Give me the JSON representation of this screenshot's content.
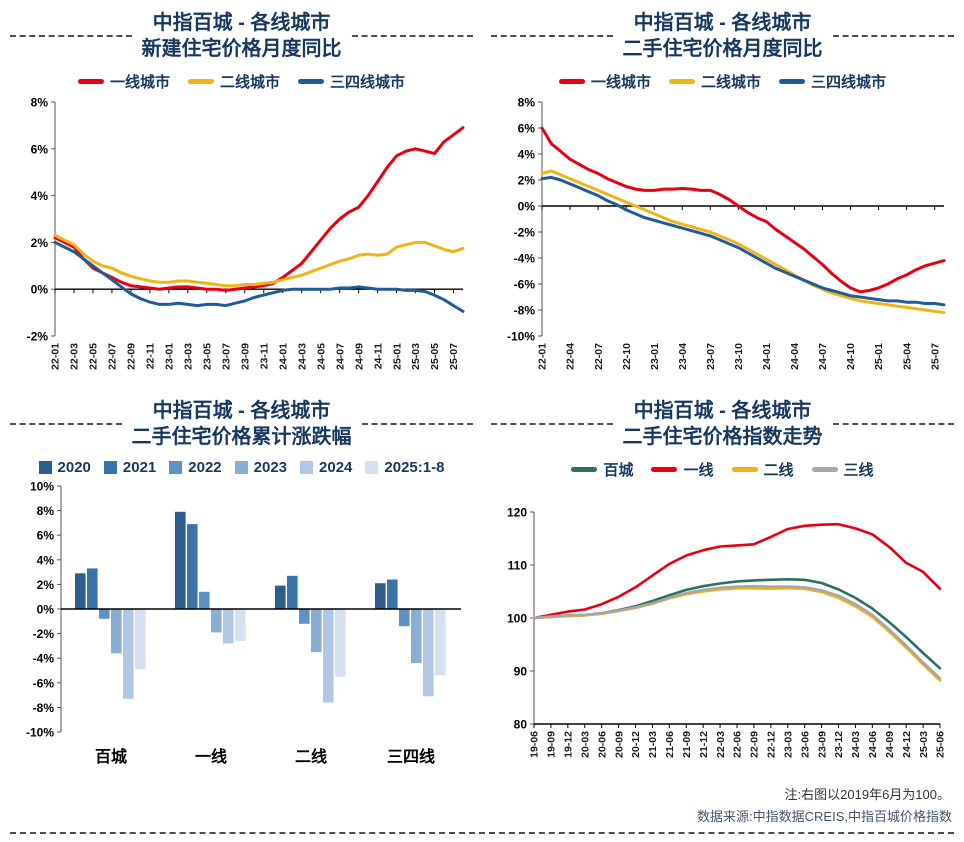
{
  "chart_data": [
    {
      "id": "new-home-price-monthly-yoy",
      "title_line1": "中指百城 - 各线城市",
      "title_line2": "新建住宅价格月度同比",
      "type": "line",
      "x": [
        "22-01",
        "22-02",
        "22-03",
        "22-04",
        "22-05",
        "22-06",
        "22-07",
        "22-08",
        "22-09",
        "22-10",
        "22-11",
        "22-12",
        "23-01",
        "23-02",
        "23-03",
        "23-04",
        "23-05",
        "23-06",
        "23-07",
        "23-08",
        "23-09",
        "23-10",
        "23-11",
        "23-12",
        "24-01",
        "24-02",
        "24-03",
        "24-04",
        "24-05",
        "24-06",
        "24-07",
        "24-08",
        "24-09",
        "24-10",
        "24-11",
        "24-12",
        "25-01",
        "25-02",
        "25-03",
        "25-04",
        "25-05",
        "25-06",
        "25-07",
        "25-08"
      ],
      "xtick_every": 2,
      "ylim": [
        -2,
        8
      ],
      "ytick": 2,
      "percent": true,
      "baseline": 0,
      "legend_position": "top",
      "grid": false,
      "series": [
        {
          "name": "一线城市",
          "color": "#e60012",
          "values": [
            2.2,
            2.0,
            1.8,
            1.3,
            0.9,
            0.7,
            0.5,
            0.3,
            0.15,
            0.1,
            0.05,
            0.0,
            0.05,
            0.1,
            0.1,
            0.05,
            0.0,
            0.0,
            -0.05,
            0.0,
            0.05,
            0.1,
            0.15,
            0.25,
            0.5,
            0.8,
            1.1,
            1.6,
            2.1,
            2.6,
            3.0,
            3.3,
            3.5,
            4.0,
            4.6,
            5.2,
            5.7,
            5.9,
            6.0,
            5.9,
            5.8,
            6.3,
            6.6,
            6.9
          ]
        },
        {
          "name": "二线城市",
          "color": "#f0b417",
          "values": [
            2.3,
            2.1,
            1.9,
            1.5,
            1.2,
            1.0,
            0.9,
            0.7,
            0.55,
            0.45,
            0.35,
            0.3,
            0.3,
            0.35,
            0.35,
            0.3,
            0.25,
            0.2,
            0.15,
            0.15,
            0.2,
            0.2,
            0.25,
            0.3,
            0.4,
            0.5,
            0.6,
            0.75,
            0.9,
            1.05,
            1.2,
            1.3,
            1.45,
            1.5,
            1.45,
            1.5,
            1.8,
            1.9,
            2.0,
            2.0,
            1.85,
            1.7,
            1.6,
            1.75
          ]
        },
        {
          "name": "三四线城市",
          "color": "#1e5c97",
          "values": [
            2.0,
            1.8,
            1.6,
            1.3,
            1.0,
            0.7,
            0.4,
            0.1,
            -0.2,
            -0.4,
            -0.55,
            -0.65,
            -0.65,
            -0.6,
            -0.65,
            -0.7,
            -0.65,
            -0.65,
            -0.7,
            -0.6,
            -0.5,
            -0.35,
            -0.25,
            -0.15,
            -0.05,
            0.0,
            0.0,
            0.0,
            0.0,
            0.0,
            0.05,
            0.05,
            0.1,
            0.05,
            0.0,
            0.0,
            0.0,
            -0.05,
            -0.05,
            -0.1,
            -0.25,
            -0.45,
            -0.7,
            -0.95
          ]
        }
      ]
    },
    {
      "id": "secondhand-price-monthly-yoy",
      "title_line1": "中指百城 - 各线城市",
      "title_line2": "二手住宅价格月度同比",
      "type": "line",
      "x": [
        "22-01",
        "22-02",
        "22-03",
        "22-04",
        "22-05",
        "22-06",
        "22-07",
        "22-08",
        "22-09",
        "22-10",
        "22-11",
        "22-12",
        "23-01",
        "23-02",
        "23-03",
        "23-04",
        "23-05",
        "23-06",
        "23-07",
        "23-08",
        "23-09",
        "23-10",
        "23-11",
        "23-12",
        "24-01",
        "24-02",
        "24-03",
        "24-04",
        "24-05",
        "24-06",
        "24-07",
        "24-08",
        "24-09",
        "24-10",
        "24-11",
        "24-12",
        "25-01",
        "25-02",
        "25-03",
        "25-04",
        "25-05",
        "25-06",
        "25-07",
        "25-08"
      ],
      "xtick_every": 3,
      "ylim": [
        -10,
        8
      ],
      "ytick": 2,
      "percent": true,
      "baseline": 0,
      "legend_position": "top",
      "grid": false,
      "series": [
        {
          "name": "一线城市",
          "color": "#e60012",
          "values": [
            6.0,
            4.8,
            4.2,
            3.6,
            3.2,
            2.8,
            2.5,
            2.1,
            1.8,
            1.5,
            1.3,
            1.2,
            1.2,
            1.3,
            1.3,
            1.35,
            1.3,
            1.2,
            1.2,
            0.9,
            0.5,
            0.0,
            -0.5,
            -0.9,
            -1.2,
            -1.8,
            -2.3,
            -2.8,
            -3.3,
            -3.9,
            -4.5,
            -5.2,
            -5.8,
            -6.3,
            -6.6,
            -6.5,
            -6.3,
            -6.0,
            -5.6,
            -5.3,
            -4.9,
            -4.6,
            -4.4,
            -4.2
          ]
        },
        {
          "name": "二线城市",
          "color": "#f0b417",
          "values": [
            2.5,
            2.7,
            2.4,
            2.1,
            1.8,
            1.5,
            1.2,
            0.9,
            0.6,
            0.3,
            0.0,
            -0.3,
            -0.6,
            -0.9,
            -1.2,
            -1.4,
            -1.6,
            -1.8,
            -2.0,
            -2.3,
            -2.6,
            -2.9,
            -3.3,
            -3.7,
            -4.1,
            -4.5,
            -4.9,
            -5.3,
            -5.7,
            -6.1,
            -6.4,
            -6.7,
            -6.9,
            -7.1,
            -7.3,
            -7.4,
            -7.5,
            -7.6,
            -7.7,
            -7.8,
            -7.9,
            -8.0,
            -8.1,
            -8.2
          ]
        },
        {
          "name": "三四线城市",
          "color": "#1e5c97",
          "values": [
            2.1,
            2.2,
            2.0,
            1.7,
            1.4,
            1.1,
            0.8,
            0.4,
            0.1,
            -0.3,
            -0.6,
            -0.9,
            -1.1,
            -1.3,
            -1.5,
            -1.7,
            -1.9,
            -2.1,
            -2.3,
            -2.6,
            -2.9,
            -3.2,
            -3.6,
            -4.0,
            -4.4,
            -4.8,
            -5.1,
            -5.4,
            -5.7,
            -6.0,
            -6.3,
            -6.5,
            -6.7,
            -6.9,
            -7.0,
            -7.1,
            -7.2,
            -7.3,
            -7.3,
            -7.4,
            -7.4,
            -7.5,
            -7.5,
            -7.6
          ]
        }
      ]
    },
    {
      "id": "secondhand-price-cumulative-change",
      "title_line1": "中指百城 - 各线城市",
      "title_line2": "二手住宅价格累计涨跌幅",
      "type": "bar",
      "categories": [
        "百城",
        "一线",
        "二线",
        "三四线"
      ],
      "ylim": [
        -10,
        10
      ],
      "ytick": 2,
      "percent": true,
      "baseline": 0,
      "legend_position": "top",
      "grid": false,
      "series": [
        {
          "name": "2020",
          "color": "#2d5e8d",
          "values": [
            2.9,
            7.9,
            1.9,
            2.1
          ]
        },
        {
          "name": "2021",
          "color": "#3b74a8",
          "values": [
            3.3,
            6.9,
            2.7,
            2.4
          ]
        },
        {
          "name": "2022",
          "color": "#5e92c2",
          "values": [
            -0.8,
            1.4,
            -1.2,
            -1.4
          ]
        },
        {
          "name": "2023",
          "color": "#89aed4",
          "values": [
            -3.6,
            -1.9,
            -3.5,
            -4.4
          ]
        },
        {
          "name": "2024",
          "color": "#b0c8e4",
          "values": [
            -7.3,
            -2.8,
            -7.6,
            -7.1
          ]
        },
        {
          "name": "2025:1-8",
          "color": "#d4e0f0",
          "values": [
            -4.9,
            -2.6,
            -5.5,
            -5.4
          ]
        }
      ]
    },
    {
      "id": "secondhand-price-index-trend",
      "title_line1": "中指百城 - 各线城市",
      "title_line2": "二手住宅价格指数走势",
      "type": "line",
      "x": [
        "19-06",
        "19-09",
        "19-12",
        "20-03",
        "20-06",
        "20-09",
        "20-12",
        "21-03",
        "21-06",
        "21-09",
        "21-12",
        "22-03",
        "22-06",
        "22-09",
        "22-12",
        "23-03",
        "23-06",
        "23-09",
        "23-12",
        "24-03",
        "24-06",
        "24-09",
        "24-12",
        "25-03",
        "25-06"
      ],
      "xtick_every": 1,
      "ylim": [
        80,
        120
      ],
      "ytick": 10,
      "percent": false,
      "baseline": 80,
      "legend_position": "top",
      "grid": false,
      "series": [
        {
          "name": "百城",
          "color": "#2e6f63",
          "values": [
            100,
            100.2,
            100.4,
            100.5,
            100.9,
            101.5,
            102.2,
            103.2,
            104.3,
            105.3,
            106.0,
            106.5,
            106.9,
            107.1,
            107.2,
            107.3,
            107.2,
            106.6,
            105.4,
            103.8,
            101.8,
            99.2,
            96.4,
            93.4,
            90.5
          ]
        },
        {
          "name": "一线",
          "color": "#e60012",
          "values": [
            100,
            100.6,
            101.2,
            101.6,
            102.6,
            104.0,
            105.8,
            108.0,
            110.2,
            111.8,
            112.8,
            113.5,
            113.7,
            113.9,
            115.3,
            116.8,
            117.4,
            117.6,
            117.7,
            116.9,
            115.8,
            113.4,
            110.4,
            108.7,
            105.5
          ]
        },
        {
          "name": "二线",
          "color": "#f0b417",
          "values": [
            100,
            100.2,
            100.4,
            100.5,
            100.8,
            101.3,
            101.9,
            102.7,
            103.7,
            104.5,
            105.0,
            105.4,
            105.6,
            105.6,
            105.5,
            105.6,
            105.5,
            104.9,
            103.8,
            102.2,
            100.2,
            97.4,
            94.4,
            91.2,
            88.2
          ]
        },
        {
          "name": "三线",
          "color": "#a6a6a6",
          "values": [
            100,
            100.3,
            100.5,
            100.6,
            100.9,
            101.4,
            102.0,
            102.8,
            103.8,
            104.7,
            105.3,
            105.7,
            105.9,
            106.0,
            105.9,
            105.9,
            105.8,
            105.2,
            104.2,
            102.6,
            100.6,
            97.8,
            94.8,
            91.6,
            88.6
          ]
        }
      ]
    }
  ],
  "footer": {
    "note": "注:右图以2019年6月为100。",
    "source": "数据来源:中指数据CREIS,中指百城价格指数"
  }
}
